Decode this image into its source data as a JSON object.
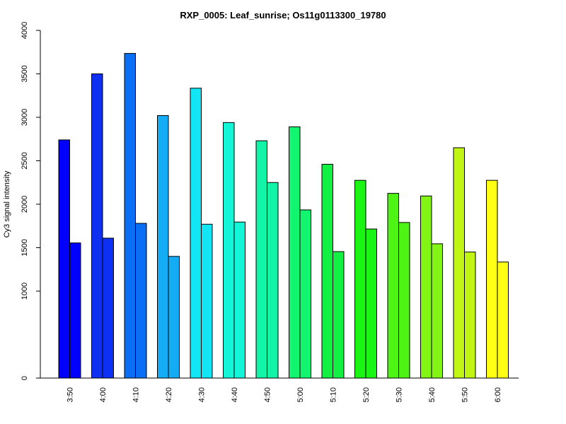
{
  "chart_data": {
    "type": "bar",
    "title": "RXP_0005: Leaf_sunrise; Os11g0113300_19780",
    "xlabel": "",
    "ylabel": "Cy3 signal intensity",
    "ylim": [
      0,
      4000
    ],
    "y_scale": "piecewise: 0 to 1000 compressed, 1000 to 4000 linear",
    "y_ticks": [
      0,
      1000,
      1500,
      2000,
      2500,
      3000,
      3500,
      4000
    ],
    "y_tick_labels": [
      "0",
      "1000",
      "1500",
      "2000",
      "2500",
      "3000",
      "3500",
      "4000"
    ],
    "categories": [
      "3:50",
      "4:00",
      "4:10",
      "4:20",
      "4:30",
      "4:40",
      "4:50",
      "5:00",
      "5:10",
      "5:20",
      "5:30",
      "5:40",
      "5:50",
      "6:00"
    ],
    "series": [
      {
        "values": [
          2740,
          3500,
          3735,
          3020,
          3335,
          2940,
          2730,
          2890,
          2460,
          2275,
          2125,
          2095,
          2650,
          2275
        ]
      },
      {
        "values": [
          1555,
          1610,
          1780,
          1400,
          1770,
          1795,
          2250,
          1935,
          1455,
          1715,
          1790,
          1545,
          1450,
          1335
        ]
      }
    ],
    "colors": [
      "#0000ff",
      "#0d30f2",
      "#0b6ff5",
      "#14adf5",
      "#12e6f5",
      "#13f5d7",
      "#12f5a8",
      "#12f56e",
      "#12f044",
      "#1af514",
      "#4ef514",
      "#82f514",
      "#c0f514",
      "#ffff14"
    ],
    "grid": false,
    "legend": "none"
  }
}
